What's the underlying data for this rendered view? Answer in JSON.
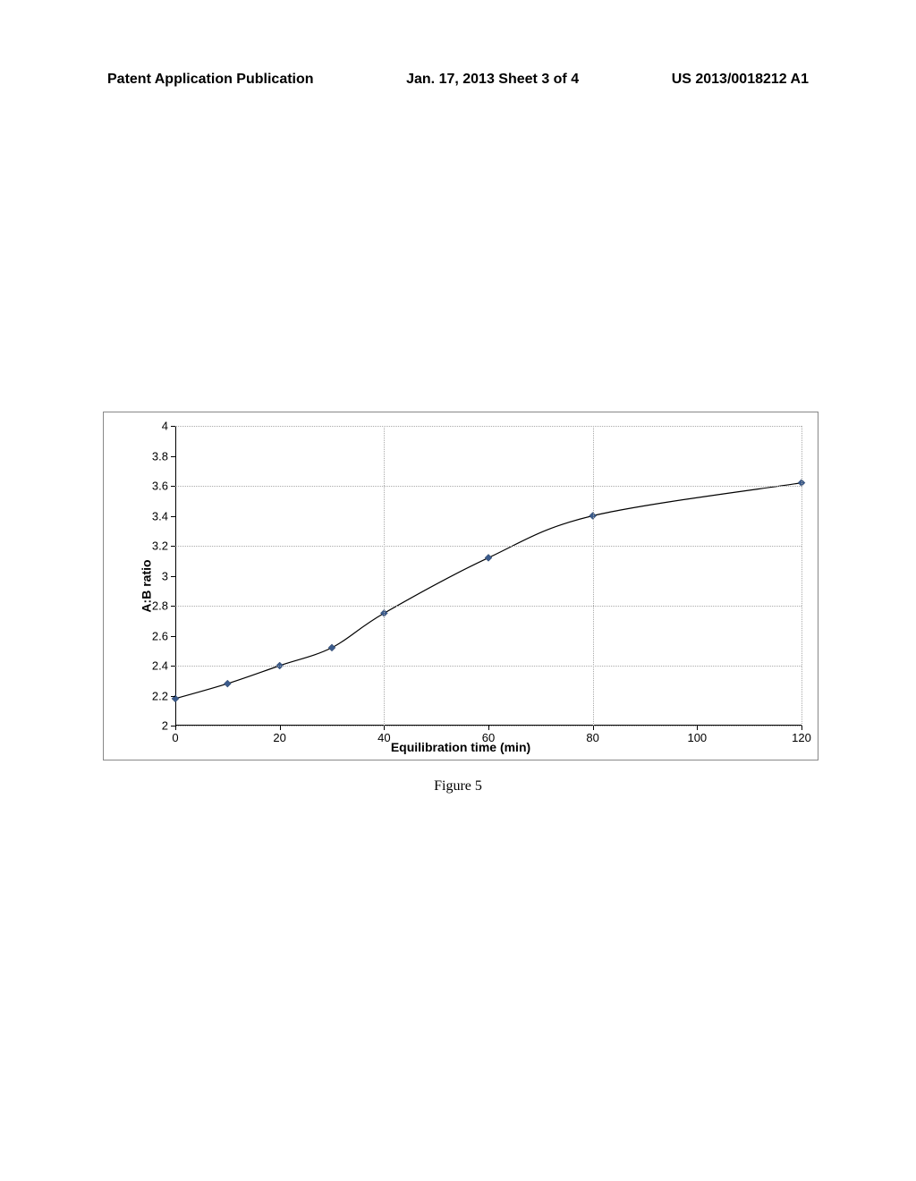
{
  "header": {
    "left": "Patent Application Publication",
    "center": "Jan. 17, 2013  Sheet 3 of 4",
    "right": "US 2013/0018212 A1"
  },
  "caption": "Figure 5",
  "chart": {
    "type": "line",
    "xlabel": "Equilibration time (min)",
    "ylabel": "A:B ratio",
    "xlim": [
      0,
      120
    ],
    "ylim": [
      2,
      4
    ],
    "xticks": [
      0,
      20,
      40,
      60,
      80,
      100,
      120
    ],
    "yticks": [
      2,
      2.2,
      2.4,
      2.6,
      2.8,
      3,
      3.2,
      3.4,
      3.6,
      3.8,
      4
    ],
    "y_gridlines": [
      2,
      2.4,
      2.8,
      3.2,
      3.6,
      4
    ],
    "x_gridlines": [
      40,
      80,
      120
    ],
    "grid_color": "#aaaaaa",
    "background_color": "#ffffff",
    "axis_color": "#000000",
    "label_fontsize": 14,
    "tick_fontsize": 13,
    "series": {
      "label": "A:B ratio",
      "x": [
        0,
        10,
        20,
        30,
        40,
        60,
        80,
        120
      ],
      "y": [
        2.18,
        2.28,
        2.4,
        2.52,
        2.75,
        3.12,
        3.4,
        3.62
      ],
      "line_color": "#000000",
      "line_width": 1.2,
      "marker": "diamond",
      "marker_color": "#3b5b8c",
      "marker_size": 8
    }
  }
}
